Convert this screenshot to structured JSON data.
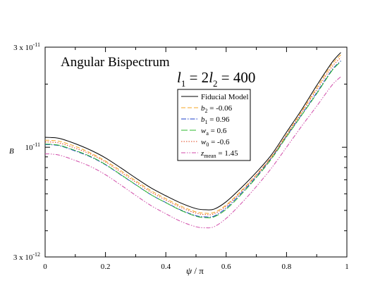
{
  "chart_data": {
    "type": "line",
    "title": "Angular Bispectrum",
    "annotation": {
      "l": "l",
      "s1": "1",
      "eq1": " = 2",
      "s2": "2",
      "eq2": " = 400"
    },
    "xlabel": {
      "psi": "ψ",
      "rest": " / π"
    },
    "ylabel": "B",
    "xlim": [
      0,
      1
    ],
    "ylim": [
      3e-12,
      3e-11
    ],
    "yscale": "log",
    "x_ticks": [
      "0",
      "0.2",
      "0.4",
      "0.6",
      "0.8",
      "1"
    ],
    "y_ticks": [
      {
        "value": 3e-11,
        "mant": "3 x 10",
        "exp": "-11"
      },
      {
        "value": 1e-11,
        "mant": "10",
        "exp": "-11"
      },
      {
        "value": 3e-12,
        "mant": "3 x 10",
        "exp": "-12"
      }
    ],
    "x": [
      0.0,
      0.02,
      0.05,
      0.1,
      0.15,
      0.2,
      0.25,
      0.3,
      0.35,
      0.4,
      0.45,
      0.5,
      0.53,
      0.56,
      0.6,
      0.65,
      0.7,
      0.75,
      0.8,
      0.85,
      0.9,
      0.95,
      0.98
    ],
    "series": [
      {
        "key": "fiducial",
        "name": "Fiducial Model",
        "color": "#000000",
        "dash": "",
        "values": [
          1.115e-11,
          1.113e-11,
          1.1e-11,
          1.04e-11,
          9.7e-12,
          8.9e-12,
          7.99e-12,
          7.14e-12,
          6.41e-12,
          5.87e-12,
          5.42e-12,
          5.1e-12,
          5.04e-12,
          5.07e-12,
          5.5e-12,
          6.41e-12,
          7.6e-12,
          9.2e-12,
          1.18e-11,
          1.51e-11,
          1.97e-11,
          2.53e-11,
          2.83e-11
        ]
      },
      {
        "key": "b2",
        "name": "b",
        "sub": "2",
        "rest": " = -0.06",
        "color": "#f5a623",
        "dash": "6,3",
        "values": [
          1.08e-11,
          1.078e-11,
          1.065e-11,
          1.01e-11,
          9.4e-12,
          8.6e-12,
          7.75e-12,
          6.93e-12,
          6.22e-12,
          5.69e-12,
          5.24e-12,
          4.92e-12,
          4.85e-12,
          4.89e-12,
          5.31e-12,
          6.21e-12,
          7.4e-12,
          9e-12,
          1.15e-11,
          1.48e-11,
          1.92e-11,
          2.48e-11,
          2.76e-11
        ]
      },
      {
        "key": "b1",
        "name": "b",
        "sub": "1",
        "rest": " = 0.96",
        "color": "#1a3cc8",
        "dash": "7,2,1.5,2",
        "values": [
          1.03e-11,
          1.028e-11,
          1.015e-11,
          9.6e-12,
          9e-12,
          8.25e-12,
          7.4e-12,
          6.63e-12,
          5.95e-12,
          5.45e-12,
          5.02e-12,
          4.72e-12,
          4.66e-12,
          4.7e-12,
          5.13e-12,
          6.04e-12,
          7.25e-12,
          8.9e-12,
          1.13e-11,
          1.43e-11,
          1.82e-11,
          2.33e-11,
          2.58e-11
        ]
      },
      {
        "key": "wa",
        "name": "w",
        "sub": "a",
        "rest": " = 0.6",
        "color": "#2eb82e",
        "dash": "9,3",
        "values": [
          1.035e-11,
          1.033e-11,
          1.02e-11,
          9.65e-12,
          9.05e-12,
          8.28e-12,
          7.42e-12,
          6.64e-12,
          5.95e-12,
          5.44e-12,
          5e-12,
          4.69e-12,
          4.62e-12,
          4.66e-12,
          5.06e-12,
          5.96e-12,
          7.17e-12,
          8.8e-12,
          1.12e-11,
          1.42e-11,
          1.8e-11,
          2.31e-11,
          2.56e-11
        ]
      },
      {
        "key": "w0",
        "name": "w",
        "sub": "0",
        "rest": " = -0.6",
        "color": "#e0401a",
        "dash": "1.5,2",
        "values": [
          1.06e-11,
          1.058e-11,
          1.045e-11,
          9.9e-12,
          9.28e-12,
          8.5e-12,
          7.62e-12,
          6.82e-12,
          6.12e-12,
          5.6e-12,
          5.16e-12,
          4.85e-12,
          4.78e-12,
          4.82e-12,
          5.24e-12,
          6.14e-12,
          7.35e-12,
          8.95e-12,
          1.14e-11,
          1.46e-11,
          1.88e-11,
          2.41e-11,
          2.68e-11
        ]
      },
      {
        "key": "zmean",
        "name": "z",
        "sub": "mean",
        "rest": " = 1.45",
        "color": "#d04aa8",
        "dash": "6,2,1.5,2,1.5,2",
        "values": [
          9.3e-12,
          9.28e-12,
          9.15e-12,
          8.65e-12,
          8.1e-12,
          7.4e-12,
          6.62e-12,
          5.9e-12,
          5.28e-12,
          4.82e-12,
          4.43e-12,
          4.18e-12,
          4.13e-12,
          4.18e-12,
          4.58e-12,
          5.4e-12,
          6.5e-12,
          7.95e-12,
          1e-11,
          1.26e-11,
          1.57e-11,
          1.97e-11,
          2.17e-11
        ]
      }
    ],
    "legend_position": "upper-center",
    "grid": false
  }
}
